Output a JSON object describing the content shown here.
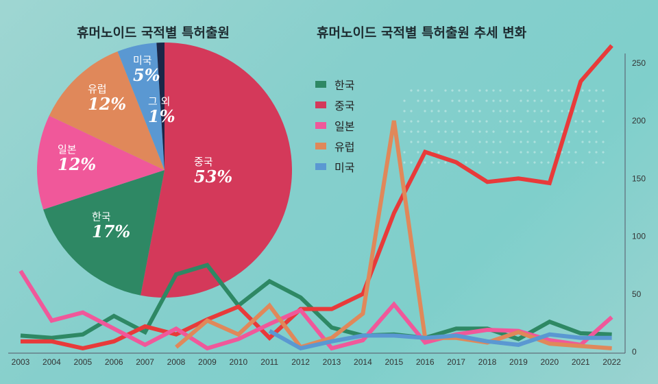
{
  "chart_data": [
    {
      "type": "pie",
      "title": "휴머노이드 국적별 특허출원",
      "slices": [
        {
          "label": "중국",
          "value": 53,
          "text": "53%",
          "color": "#d4395a"
        },
        {
          "label": "한국",
          "value": 17,
          "text": "17%",
          "color": "#2e8864"
        },
        {
          "label": "일본",
          "value": 12,
          "text": "12%",
          "color": "#f0589a"
        },
        {
          "label": "유럽",
          "value": 12,
          "text": "12%",
          "color": "#e0885a"
        },
        {
          "label": "미국",
          "value": 5,
          "text": "5%",
          "color": "#5a98d2"
        },
        {
          "label": "그 외",
          "value": 1,
          "text": "1%",
          "color": "#1b2748"
        }
      ]
    },
    {
      "type": "line",
      "title": "휴머노이드 국적별 특허출원 추세 변화",
      "x": [
        "2003",
        "2004",
        "2005",
        "2006",
        "2007",
        "2008",
        "2009",
        "2010",
        "2011",
        "2012",
        "2013",
        "2014",
        "2015",
        "2016",
        "2017",
        "2018",
        "2019",
        "2020",
        "2021",
        "2022"
      ],
      "ylim": [
        0,
        270
      ],
      "yticks": [
        "0",
        "50",
        "100",
        "150",
        "200",
        "250"
      ],
      "legend_position": "top-left",
      "series": [
        {
          "name": "한국",
          "color": "#2e8864",
          "values": [
            14,
            12,
            15,
            31,
            17,
            67,
            75,
            40,
            61,
            47,
            21,
            14,
            15,
            12,
            20,
            20,
            11,
            26,
            16,
            15
          ]
        },
        {
          "name": "중국",
          "color": "#e83a3a",
          "values": [
            9,
            9,
            3,
            9,
            22,
            15,
            28,
            39,
            12,
            37,
            37,
            50,
            120,
            173,
            164,
            147,
            150,
            146,
            234,
            265
          ]
        },
        {
          "name": "일본",
          "color": "#f0589a",
          "values": [
            70,
            27,
            34,
            20,
            6,
            20,
            3,
            11,
            24,
            36,
            3,
            10,
            41,
            8,
            15,
            19,
            18,
            10,
            6,
            30
          ]
        },
        {
          "name": "유럽",
          "color": "#e0885a",
          "values": [
            null,
            null,
            null,
            null,
            null,
            4,
            27,
            15,
            40,
            4,
            12,
            33,
            200,
            12,
            12,
            8,
            17,
            7,
            5,
            3
          ]
        },
        {
          "name": "미국",
          "color": "#5a98d2",
          "values": [
            null,
            null,
            null,
            null,
            null,
            null,
            null,
            null,
            18,
            3,
            9,
            14,
            14,
            12,
            14,
            9,
            6,
            15,
            12,
            12
          ]
        }
      ]
    }
  ]
}
